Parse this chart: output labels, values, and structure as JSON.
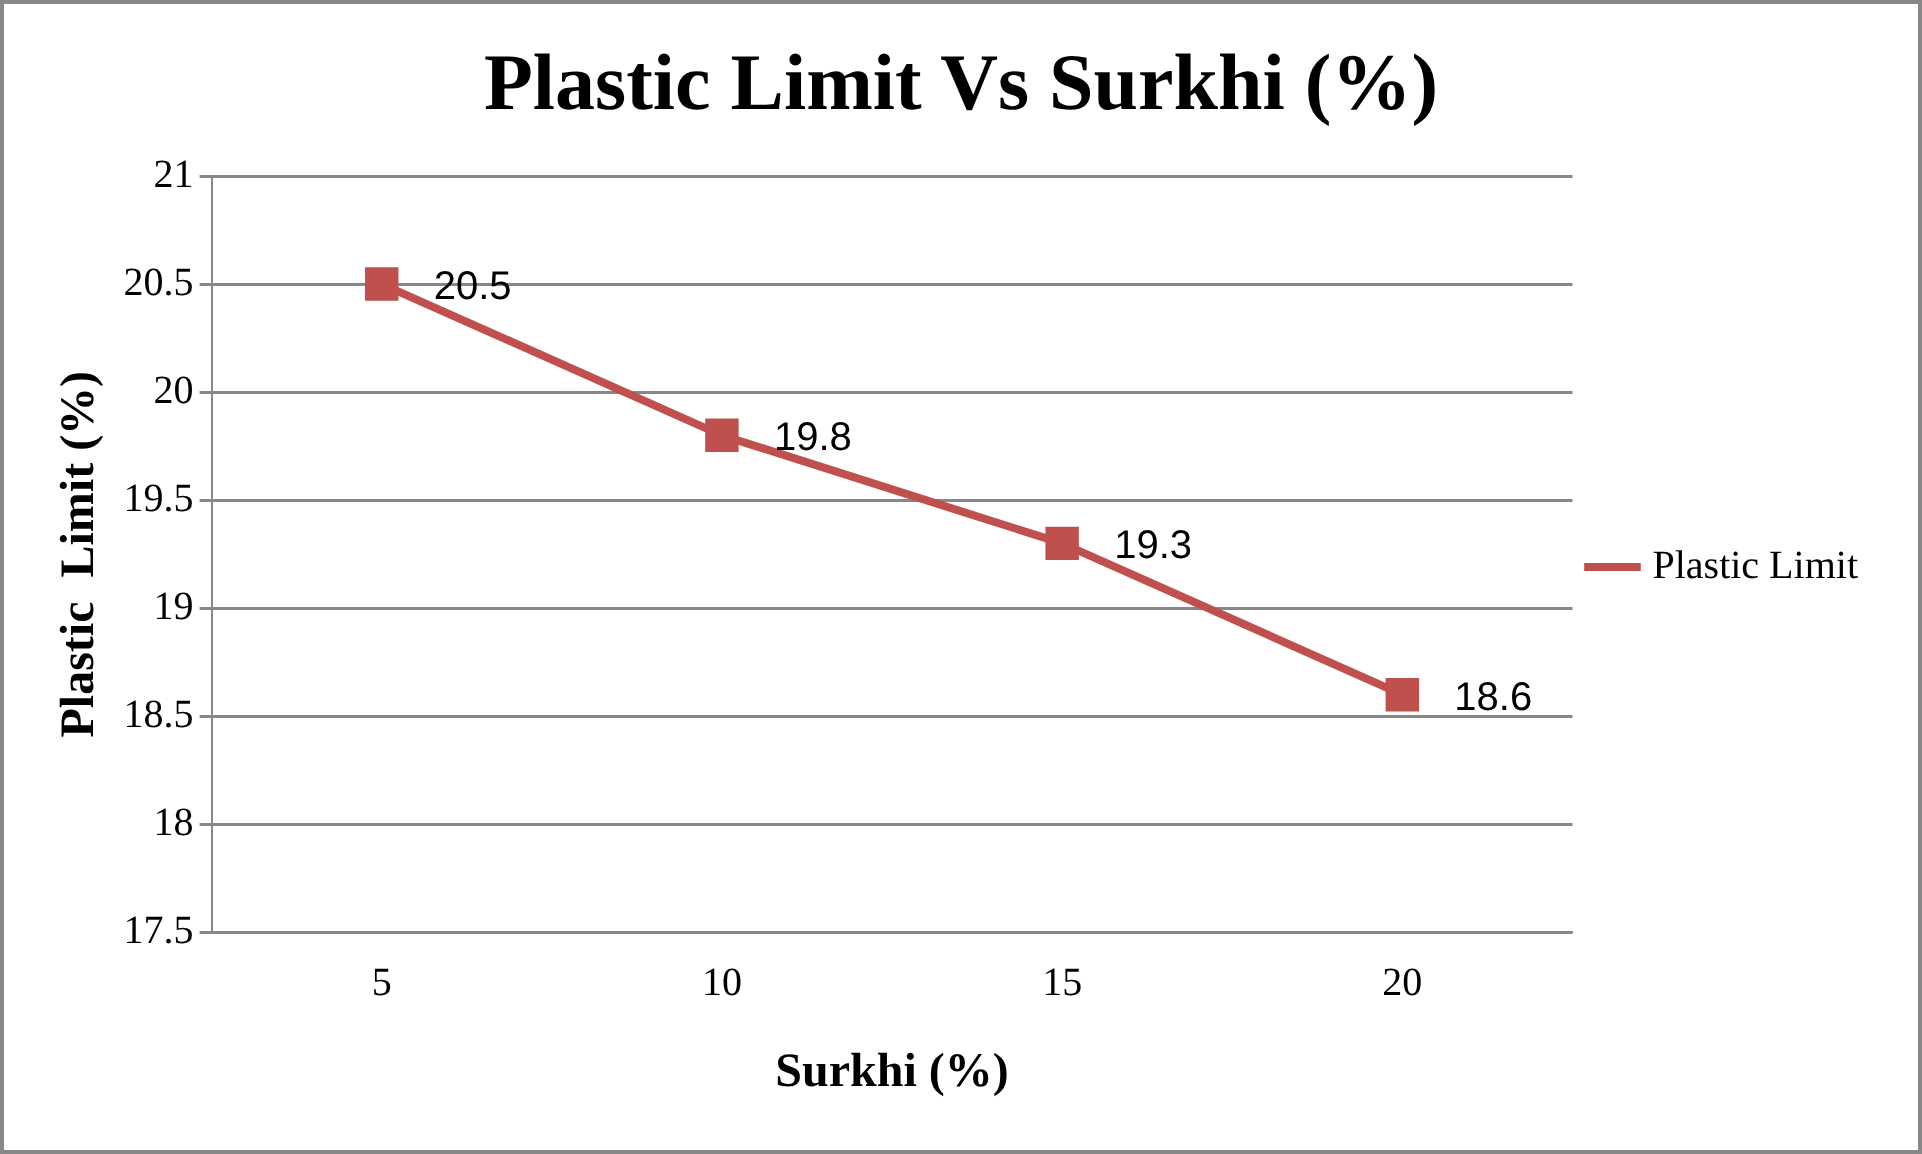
{
  "chart_data": {
    "type": "line",
    "title": "Plastic Limit Vs Surkhi (%)",
    "xlabel": "Surkhi (%)",
    "ylabel": "Plastic  Limit (%)",
    "categories": [
      "5",
      "10",
      "15",
      "20"
    ],
    "series": [
      {
        "name": "Plastic Limit",
        "color": "#c0504d",
        "values": [
          20.5,
          19.8,
          19.3,
          18.6
        ]
      }
    ],
    "ylim": [
      17.5,
      21
    ],
    "yticks": [
      17.5,
      18,
      18.5,
      19,
      19.5,
      20,
      20.5,
      21
    ],
    "grid": "y",
    "legend": "right",
    "marker": "square",
    "line_style": "solid",
    "data_labels": true
  }
}
